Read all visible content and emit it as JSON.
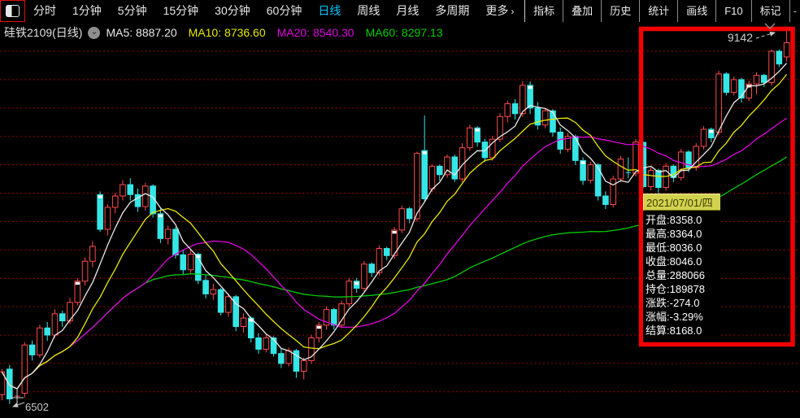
{
  "toolbar": {
    "layout_icon": "split-window-icon",
    "periods": [
      "分时",
      "1分钟",
      "5分钟",
      "15分钟",
      "30分钟",
      "60分钟",
      "日线",
      "周线",
      "月线",
      "多周期",
      "更多"
    ],
    "active_period": "日线",
    "more_chevron": "›",
    "right_buttons": [
      "指标",
      "叠加",
      "历史",
      "统计",
      "画线",
      "F10",
      "标记"
    ],
    "overflow_dash": "-"
  },
  "info_bar": {
    "instrument": "硅铁2109(日线)",
    "ma_labels": [
      {
        "name": "MA5",
        "value": "8887.20",
        "color": "#e9e9e9"
      },
      {
        "name": "MA10",
        "value": "8736.60",
        "color": "#e8e800"
      },
      {
        "name": "MA20",
        "value": "8540.30",
        "color": "#e000e0"
      },
      {
        "name": "MA60",
        "value": "8297.13",
        "color": "#00cc00"
      }
    ]
  },
  "tooltip": {
    "date": "2021/07/01/四",
    "rows": [
      {
        "label": "开盘",
        "value": "8358.0"
      },
      {
        "label": "最高",
        "value": "8364.0"
      },
      {
        "label": "最低",
        "value": "8036.0"
      },
      {
        "label": "收盘",
        "value": "8046.0"
      },
      {
        "label": "总量",
        "value": "288066"
      },
      {
        "label": "持仓",
        "value": "189878"
      },
      {
        "label": "涨跌",
        "value": "-274.0"
      },
      {
        "label": "涨幅",
        "value": "-3.29%"
      },
      {
        "label": "结算",
        "value": "8168.0"
      }
    ]
  },
  "markers": {
    "low_label": "6502",
    "high_label": "9142"
  },
  "annotation": {
    "rect_color": "#f20000"
  },
  "chart_data": {
    "type": "candlestick",
    "title": "硅铁2109 日线",
    "ylim": [
      6450,
      9250
    ],
    "price_gridlines": [
      6600,
      6800,
      7000,
      7200,
      7400,
      7600,
      7800,
      8000,
      8200,
      8400,
      8600,
      8800,
      9000
    ],
    "grid_color": "#c40000",
    "up_color": "#ff4a4a",
    "down_color": "#35e6e6",
    "mark_color": "#ffffff",
    "ma": [
      {
        "name": "MA60",
        "window": 60,
        "color": "#00cc00"
      },
      {
        "name": "MA20",
        "window": 20,
        "color": "#e000e0"
      },
      {
        "name": "MA10",
        "window": 10,
        "color": "#e8e800"
      },
      {
        "name": "MA5",
        "window": 5,
        "color": "#e9e9e9"
      }
    ],
    "candles": [
      [
        6580,
        6760,
        6540,
        6740
      ],
      [
        6760,
        6790,
        6515,
        6550
      ],
      [
        6570,
        6612,
        6502,
        6574
      ],
      [
        6590,
        6950,
        6560,
        6930
      ],
      [
        6930,
        6962,
        6820,
        6860
      ],
      [
        6860,
        7072,
        6840,
        7050
      ],
      [
        7050,
        7092,
        6958,
        7000
      ],
      [
        7000,
        7182,
        6980,
        7150
      ],
      [
        7150,
        7172,
        7058,
        7100
      ],
      [
        7100,
        7262,
        7078,
        7230
      ],
      [
        7230,
        7402,
        7208,
        7380,
        1
      ],
      [
        7380,
        7546,
        7350,
        7520
      ],
      [
        7520,
        7662,
        7478,
        7625
      ],
      [
        7990,
        8012,
        7728,
        7745,
        1
      ],
      [
        7745,
        7922,
        7700,
        7900
      ],
      [
        7900,
        8002,
        7858,
        7980
      ],
      [
        7980,
        8092,
        7948,
        8060
      ],
      [
        8060,
        8106,
        7948,
        7990
      ],
      [
        7990,
        8032,
        7868,
        7905
      ],
      [
        7905,
        8072,
        7878,
        8050
      ],
      [
        8050,
        8062,
        7828,
        7855
      ],
      [
        7855,
        7892,
        7648,
        7680,
        1
      ],
      [
        7680,
        7772,
        7638,
        7745
      ],
      [
        7745,
        7762,
        7538,
        7565
      ],
      [
        7565,
        7602,
        7428,
        7460
      ],
      [
        7460,
        7600,
        7438,
        7570
      ],
      [
        7570,
        7582,
        7358,
        7385,
        1
      ],
      [
        7385,
        7422,
        7258,
        7290
      ],
      [
        7290,
        7362,
        7248,
        7320
      ],
      [
        7320,
        7332,
        7138,
        7160
      ],
      [
        7160,
        7292,
        7128,
        7270
      ],
      [
        7270,
        7282,
        7028,
        7060
      ],
      [
        7060,
        7152,
        7018,
        7120
      ],
      [
        7120,
        7132,
        6948,
        6980,
        1
      ],
      [
        6980,
        7012,
        6868,
        6900
      ],
      [
        6900,
        7002,
        6878,
        6980
      ],
      [
        6980,
        6992,
        6848,
        6870
      ],
      [
        6870,
        6902,
        6768,
        6800
      ],
      [
        6800,
        6912,
        6778,
        6890
      ],
      [
        6890,
        6902,
        6698,
        6745
      ],
      [
        6745,
        6842,
        6688,
        6820
      ],
      [
        6820,
        7002,
        6798,
        6980
      ],
      [
        6980,
        7092,
        6948,
        7070,
        1
      ],
      [
        7070,
        7202,
        7038,
        7180
      ],
      [
        7180,
        7192,
        7038,
        7070
      ],
      [
        7070,
        7242,
        7048,
        7220
      ],
      [
        7220,
        7402,
        7198,
        7380
      ],
      [
        7380,
        7402,
        7298,
        7330,
        1
      ],
      [
        7330,
        7522,
        7308,
        7500
      ],
      [
        7500,
        7512,
        7408,
        7440
      ],
      [
        7440,
        7632,
        7418,
        7610
      ],
      [
        7610,
        7622,
        7528,
        7560
      ],
      [
        7560,
        7762,
        7538,
        7740,
        1
      ],
      [
        7740,
        7912,
        7718,
        7890
      ],
      [
        7890,
        7902,
        7788,
        7820
      ],
      [
        7820,
        8292,
        7798,
        8280
      ],
      [
        8300,
        8547,
        7938,
        7960,
        1
      ],
      [
        8030,
        8202,
        8008,
        8190
      ],
      [
        8190,
        8202,
        8088,
        8130
      ],
      [
        8130,
        8272,
        8108,
        8255
      ],
      [
        8255,
        8272,
        8078,
        8100
      ],
      [
        8100,
        8352,
        8078,
        8320
      ],
      [
        8320,
        8482,
        8298,
        8460
      ],
      [
        8460,
        8472,
        8328,
        8360,
        1
      ],
      [
        8360,
        8382,
        8218,
        8250
      ],
      [
        8250,
        8402,
        8228,
        8380
      ],
      [
        8380,
        8562,
        8358,
        8540
      ],
      [
        8540,
        8652,
        8498,
        8630
      ],
      [
        8630,
        8662,
        8518,
        8560
      ],
      [
        8560,
        8790,
        8538,
        8760
      ],
      [
        8760,
        8788,
        8558,
        8600,
        1
      ],
      [
        8600,
        8642,
        8448,
        8480
      ],
      [
        8480,
        8602,
        8458,
        8580
      ],
      [
        8580,
        8592,
        8398,
        8430
      ],
      [
        8430,
        8462,
        8278,
        8310
      ],
      [
        8310,
        8422,
        8288,
        8400
      ],
      [
        8400,
        8412,
        8198,
        8230
      ],
      [
        8230,
        8252,
        8058,
        8090,
        1
      ],
      [
        8090,
        8222,
        8068,
        8200
      ],
      [
        8200,
        8212,
        7948,
        7980
      ],
      [
        7980,
        8012,
        7888,
        7920
      ],
      [
        7920,
        8122,
        7898,
        8100
      ],
      [
        8100,
        8262,
        8078,
        8240
      ],
      [
        8145,
        8252,
        8108,
        8140
      ],
      [
        8140,
        8382,
        8118,
        8360
      ],
      [
        8358,
        8364,
        8036,
        8046
      ],
      [
        8046,
        8182,
        8018,
        8160
      ],
      [
        8160,
        8172,
        7998,
        8040
      ],
      [
        8040,
        8212,
        8018,
        8190
      ],
      [
        8190,
        8202,
        8078,
        8110
      ],
      [
        8110,
        8312,
        8088,
        8290
      ],
      [
        8290,
        8302,
        8148,
        8180
      ],
      [
        8180,
        8352,
        8158,
        8330
      ],
      [
        8330,
        8472,
        8308,
        8450
      ],
      [
        8450,
        8462,
        8358,
        8390,
        1
      ],
      [
        8430,
        8862,
        8408,
        8840
      ],
      [
        8840,
        8852,
        8688,
        8710
      ],
      [
        8710,
        8822,
        8688,
        8800
      ],
      [
        8800,
        8812,
        8638,
        8670
      ],
      [
        8670,
        8792,
        8648,
        8770,
        1
      ],
      [
        8770,
        8852,
        8698,
        8830
      ],
      [
        8830,
        8842,
        8748,
        8780
      ],
      [
        8780,
        9012,
        8758,
        9000
      ],
      [
        9000,
        9012,
        8888,
        8910
      ],
      [
        8960,
        9142,
        8928,
        9060
      ]
    ]
  }
}
